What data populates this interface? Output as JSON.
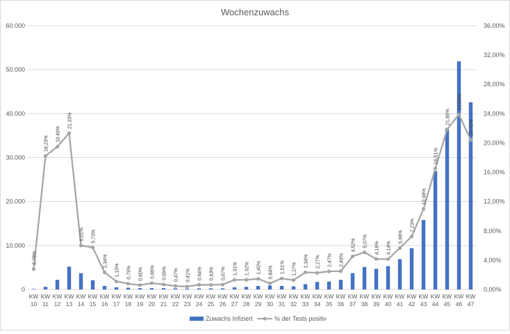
{
  "chart_data": {
    "type": "bar",
    "title": "Wochenzuwachs",
    "categories": [
      "KW 10",
      "KW 11",
      "KW 12",
      "KW 13",
      "KW 14",
      "KW 15",
      "KW 16",
      "KW 17",
      "KW 18",
      "KW 19",
      "KW 20",
      "KW 21",
      "KW 22",
      "KW 23",
      "KW 24",
      "KW 25",
      "KW 26",
      "KW 27",
      "KW 28",
      "KW 29",
      "KW 30",
      "KW 31",
      "KW 32",
      "KW 33",
      "KW 34",
      "KW 35",
      "KW 36",
      "KW 37",
      "KW 38",
      "KW 39",
      "KW 40",
      "KW 41",
      "KW 42",
      "KW 43",
      "KW 44",
      "KW 45",
      "KW 46",
      "KW 47"
    ],
    "series": [
      {
        "name": "Zuwachs Infiziert",
        "kind": "bar",
        "axis": "left",
        "color": "#4472C4",
        "values": [
          100,
          600,
          2200,
          5200,
          3700,
          2100,
          800,
          500,
          400,
          300,
          300,
          300,
          250,
          200,
          250,
          250,
          250,
          500,
          600,
          800,
          900,
          800,
          700,
          1200,
          1700,
          1800,
          2200,
          3700,
          5100,
          4700,
          5300,
          6900,
          9400,
          15800,
          26900,
          36700,
          51900,
          42600
        ]
      },
      {
        "name": "% der Tests positiv",
        "kind": "line",
        "axis": "right",
        "color": "#A5A5A5",
        "values": [
          2.78,
          18.23,
          19.49,
          21.33,
          6.01,
          5.73,
          2.34,
          1.1,
          0.79,
          0.6,
          0.86,
          0.69,
          0.47,
          0.41,
          0.64,
          0.63,
          0.67,
          1.31,
          1.32,
          1.45,
          0.84,
          1.51,
          1.27,
          2.34,
          2.27,
          2.47,
          2.49,
          4.52,
          5.07,
          4.16,
          4.14,
          5.66,
          7.23,
          10.98,
          16.51,
          21.85,
          23.89,
          20.41
        ],
        "labels": [
          "2,78%",
          "18,23%",
          "19,49%",
          "21,33%",
          "6,01%",
          "5,73%",
          "2,34%",
          "1,10%",
          "0,79%",
          "0,60%",
          "0,86%",
          "0,69%",
          "0,47%",
          "0,41%",
          "0,64%",
          "0,63%",
          "0,67%",
          "1,31%",
          "1,32%",
          "1,45%",
          "0,84%",
          "1,51%",
          "1,27%",
          "2,34%",
          "2,27%",
          "2,47%",
          "2,49%",
          "4,52%",
          "5,07%",
          "4,16%",
          "4,14%",
          "5,66%",
          "7,23%",
          "10,98%",
          "16,51%",
          "21,85%",
          "23,89%",
          "20,41%"
        ]
      }
    ],
    "y_left": {
      "ylim": [
        0,
        60000
      ],
      "ticks": [
        0,
        10000,
        20000,
        30000,
        40000,
        50000,
        60000
      ],
      "tick_labels": [
        "0",
        "10.000",
        "20.000",
        "30.000",
        "40.000",
        "50.000",
        "60.000"
      ]
    },
    "y_right": {
      "ylim": [
        0,
        36
      ],
      "ticks": [
        0,
        4,
        8,
        12,
        16,
        20,
        24,
        28,
        32,
        36
      ],
      "tick_labels": [
        "0,00%",
        "4,00%",
        "8,00%",
        "12,00%",
        "16,00%",
        "20,00%",
        "24,00%",
        "28,00%",
        "32,00%",
        "36,00%"
      ]
    },
    "grid": true,
    "legend_position": "bottom"
  }
}
